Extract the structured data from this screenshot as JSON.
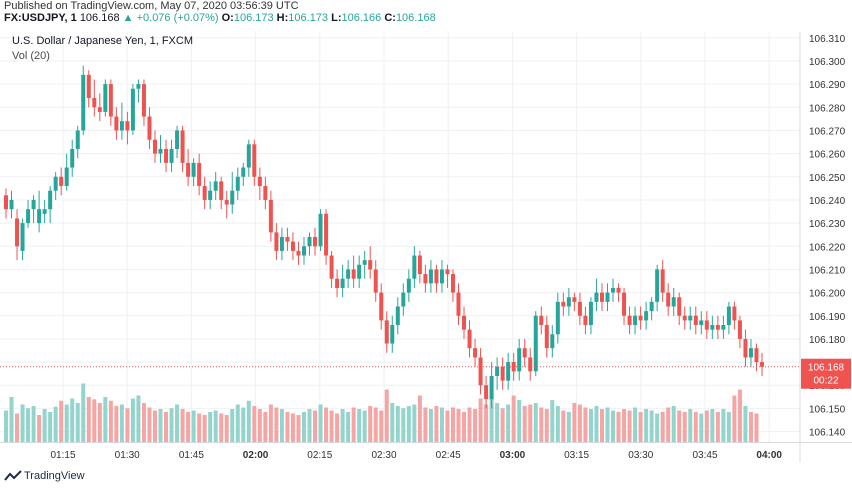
{
  "header": {
    "published": "Published on TradingView.com, May 07, 2020 03:56:39 UTC",
    "symbol": "FX:USDJPY, 1",
    "last": "106.168",
    "change_arrow": "▲",
    "change": "+0.076 (+0.07%)",
    "o_label": "O:",
    "o": "106.173",
    "h_label": "H:",
    "h": "106.173",
    "l_label": "L:",
    "l": "106.166",
    "c_label": "C:",
    "c": "106.168"
  },
  "legend": {
    "name": "U.S. Dollar / Japanese Yen, 1, FXCM",
    "vol": "Vol (20)"
  },
  "footer": {
    "brand": "TradingView",
    "brand_icon": "tradingview-logo-icon"
  },
  "colors": {
    "up": "#26a69a",
    "down": "#ef5350",
    "up_vol": "#93d4cc",
    "down_vol": "#f5a5a4",
    "grid": "#eef0f3",
    "axis_text": "#333333",
    "price_tag": "#ef5350"
  },
  "chart_data": {
    "type": "candlestick",
    "title": "U.S. Dollar / Japanese Yen, 1, FXCM",
    "x_ticks": [
      "01:15",
      "01:30",
      "01:45",
      "02:00",
      "02:15",
      "02:30",
      "02:45",
      "03:00",
      "03:15",
      "03:30",
      "03:45",
      "04:00"
    ],
    "x_ticks_bold": [
      "02:00",
      "03:00",
      "04:00"
    ],
    "y_ticks": [
      "106.310",
      "106.300",
      "106.290",
      "106.280",
      "106.270",
      "106.260",
      "106.250",
      "106.240",
      "106.230",
      "106.220",
      "106.210",
      "106.200",
      "106.190",
      "106.180",
      "106.170",
      "106.160",
      "106.150",
      "106.140"
    ],
    "ylim": [
      106.1355,
      106.3125
    ],
    "grid": true,
    "last_price_label": "106.168",
    "countdown_label": "00:22",
    "candles": [
      [
        106.242,
        106.236,
        106.245,
        106.232
      ],
      [
        106.236,
        106.24,
        106.244,
        106.232
      ],
      [
        106.232,
        106.22,
        106.236,
        106.214
      ],
      [
        106.218,
        106.23,
        106.232,
        106.214
      ],
      [
        106.23,
        106.236,
        106.24,
        106.228
      ],
      [
        106.236,
        106.24,
        106.242,
        106.23
      ],
      [
        106.23,
        106.236,
        106.244,
        106.226
      ],
      [
        106.234,
        106.236,
        106.24,
        106.23
      ],
      [
        106.236,
        106.244,
        106.246,
        106.23
      ],
      [
        106.244,
        106.25,
        106.252,
        106.24
      ],
      [
        106.25,
        106.246,
        106.254,
        106.242
      ],
      [
        106.246,
        106.254,
        106.26,
        106.244
      ],
      [
        106.254,
        106.262,
        106.266,
        106.25
      ],
      [
        106.262,
        106.27,
        106.272,
        106.258
      ],
      [
        106.27,
        106.294,
        106.298,
        106.268
      ],
      [
        106.294,
        106.284,
        106.296,
        106.28
      ],
      [
        106.284,
        106.28,
        106.292,
        106.276
      ],
      [
        106.28,
        106.278,
        106.286,
        106.274
      ],
      [
        106.278,
        106.29,
        106.292,
        106.276
      ],
      [
        106.29,
        106.276,
        106.292,
        106.272
      ],
      [
        106.276,
        106.27,
        106.28,
        106.266
      ],
      [
        106.27,
        106.274,
        106.282,
        106.266
      ],
      [
        106.274,
        106.27,
        106.278,
        106.264
      ],
      [
        106.27,
        106.288,
        106.29,
        106.268
      ],
      [
        106.288,
        106.29,
        106.292,
        106.282
      ],
      [
        106.29,
        106.276,
        106.292,
        106.272
      ],
      [
        106.276,
        106.266,
        106.28,
        106.262
      ],
      [
        106.266,
        106.26,
        106.27,
        106.256
      ],
      [
        106.26,
        106.262,
        106.268,
        106.256
      ],
      [
        106.262,
        106.256,
        106.266,
        106.252
      ],
      [
        106.256,
        106.262,
        106.266,
        106.252
      ],
      [
        106.262,
        106.27,
        106.272,
        106.258
      ],
      [
        106.27,
        106.256,
        106.272,
        106.252
      ],
      [
        106.256,
        106.25,
        106.262,
        106.246
      ],
      [
        106.25,
        106.256,
        106.258,
        106.246
      ],
      [
        106.256,
        106.246,
        106.26,
        106.242
      ],
      [
        106.246,
        106.24,
        106.25,
        106.236
      ],
      [
        106.24,
        106.244,
        106.248,
        106.236
      ],
      [
        106.244,
        106.248,
        106.252,
        106.24
      ],
      [
        106.248,
        106.24,
        106.25,
        106.236
      ],
      [
        106.24,
        106.238,
        106.244,
        106.232
      ],
      [
        106.238,
        106.244,
        106.252,
        106.234
      ],
      [
        106.244,
        106.25,
        106.254,
        106.24
      ],
      [
        106.25,
        106.254,
        106.256,
        106.246
      ],
      [
        106.254,
        106.264,
        106.266,
        106.25
      ],
      [
        106.264,
        106.25,
        106.266,
        106.246
      ],
      [
        106.25,
        106.246,
        106.254,
        106.24
      ],
      [
        106.246,
        106.24,
        106.25,
        106.236
      ],
      [
        106.24,
        106.226,
        106.244,
        106.222
      ],
      [
        106.226,
        106.218,
        106.23,
        106.214
      ],
      [
        106.218,
        106.224,
        106.228,
        106.214
      ],
      [
        106.224,
        106.222,
        106.228,
        106.218
      ],
      [
        106.222,
        106.218,
        106.226,
        106.214
      ],
      [
        106.218,
        106.216,
        106.222,
        106.212
      ],
      [
        106.216,
        106.22,
        106.224,
        106.212
      ],
      [
        106.22,
        106.224,
        106.226,
        106.216
      ],
      [
        106.224,
        106.22,
        106.228,
        106.216
      ],
      [
        106.22,
        106.234,
        106.236,
        106.218
      ],
      [
        106.234,
        106.216,
        106.236,
        106.212
      ],
      [
        106.216,
        106.206,
        106.218,
        106.202
      ],
      [
        106.206,
        106.202,
        106.21,
        106.198
      ],
      [
        106.202,
        106.206,
        106.212,
        106.198
      ],
      [
        106.206,
        106.21,
        106.214,
        106.202
      ],
      [
        106.21,
        106.206,
        106.216,
        106.202
      ],
      [
        106.206,
        106.212,
        106.216,
        106.202
      ],
      [
        106.212,
        106.214,
        106.218,
        106.206
      ],
      [
        106.214,
        106.21,
        106.22,
        106.206
      ],
      [
        106.21,
        106.2,
        106.214,
        106.196
      ],
      [
        106.2,
        106.188,
        106.204,
        106.184
      ],
      [
        106.188,
        106.178,
        106.192,
        106.174
      ],
      [
        106.178,
        106.186,
        106.19,
        106.174
      ],
      [
        106.186,
        106.194,
        106.198,
        106.182
      ],
      [
        106.194,
        106.2,
        106.204,
        106.19
      ],
      [
        106.2,
        106.206,
        106.21,
        106.196
      ],
      [
        106.206,
        106.216,
        106.22,
        106.202
      ],
      [
        106.216,
        106.208,
        106.218,
        106.204
      ],
      [
        106.208,
        106.204,
        106.212,
        106.2
      ],
      [
        106.204,
        106.21,
        106.214,
        106.2
      ],
      [
        106.21,
        106.204,
        106.212,
        106.2
      ],
      [
        106.204,
        106.21,
        106.214,
        106.2
      ],
      [
        106.21,
        106.208,
        106.212,
        106.202
      ],
      [
        106.208,
        106.2,
        106.21,
        106.196
      ],
      [
        106.2,
        106.19,
        106.204,
        106.186
      ],
      [
        106.19,
        106.184,
        106.194,
        106.18
      ],
      [
        106.184,
        106.176,
        106.188,
        106.172
      ],
      [
        106.176,
        106.172,
        106.18,
        106.168
      ],
      [
        106.172,
        106.16,
        106.176,
        106.156
      ],
      [
        106.16,
        106.154,
        106.164,
        106.15
      ],
      [
        106.154,
        106.164,
        106.17,
        106.15
      ],
      [
        106.164,
        106.168,
        106.172,
        106.158
      ],
      [
        106.168,
        106.162,
        106.172,
        106.158
      ],
      [
        106.162,
        106.17,
        106.174,
        106.158
      ],
      [
        106.17,
        106.166,
        106.174,
        106.162
      ],
      [
        106.166,
        106.176,
        106.18,
        106.162
      ],
      [
        106.176,
        106.172,
        106.18,
        106.168
      ],
      [
        106.172,
        106.166,
        106.176,
        106.162
      ],
      [
        106.166,
        106.19,
        106.192,
        106.164
      ],
      [
        106.19,
        106.186,
        106.194,
        106.182
      ],
      [
        106.186,
        106.176,
        106.19,
        106.172
      ],
      [
        106.176,
        106.182,
        106.186,
        106.172
      ],
      [
        106.182,
        106.196,
        106.2,
        106.178
      ],
      [
        106.196,
        106.194,
        106.2,
        106.19
      ],
      [
        106.194,
        106.198,
        106.202,
        106.19
      ],
      [
        106.198,
        106.196,
        106.2,
        106.192
      ],
      [
        106.196,
        106.19,
        106.2,
        106.186
      ],
      [
        106.19,
        106.186,
        106.194,
        106.182
      ],
      [
        106.186,
        106.196,
        106.198,
        106.182
      ],
      [
        106.196,
        106.2,
        106.206,
        106.192
      ],
      [
        106.2,
        106.196,
        106.204,
        106.192
      ],
      [
        106.196,
        106.2,
        106.204,
        106.192
      ],
      [
        106.2,
        106.202,
        106.206,
        106.196
      ],
      [
        106.202,
        106.2,
        106.204,
        106.196
      ],
      [
        106.2,
        106.19,
        106.202,
        106.186
      ],
      [
        106.19,
        106.186,
        106.194,
        106.182
      ],
      [
        106.186,
        106.19,
        106.194,
        106.182
      ],
      [
        106.19,
        106.188,
        106.194,
        106.184
      ],
      [
        106.188,
        106.192,
        106.196,
        106.184
      ],
      [
        106.192,
        106.196,
        106.198,
        106.188
      ],
      [
        106.196,
        106.21,
        106.212,
        106.192
      ],
      [
        106.21,
        106.2,
        106.214,
        106.196
      ],
      [
        106.2,
        106.194,
        106.204,
        106.19
      ],
      [
        106.194,
        106.198,
        106.202,
        106.19
      ],
      [
        106.198,
        106.19,
        106.2,
        106.186
      ],
      [
        106.19,
        106.188,
        106.194,
        106.184
      ],
      [
        106.188,
        106.19,
        106.194,
        106.184
      ],
      [
        106.19,
        106.186,
        106.194,
        106.182
      ],
      [
        106.186,
        106.188,
        106.192,
        106.182
      ],
      [
        106.188,
        106.184,
        106.192,
        106.18
      ],
      [
        106.184,
        106.186,
        106.19,
        106.18
      ],
      [
        106.186,
        106.184,
        106.19,
        106.18
      ],
      [
        106.184,
        106.186,
        106.19,
        106.18
      ],
      [
        106.186,
        106.194,
        106.196,
        106.182
      ],
      [
        106.194,
        106.188,
        106.196,
        106.184
      ],
      [
        106.188,
        106.18,
        106.19,
        106.176
      ],
      [
        106.18,
        106.172,
        106.184,
        106.168
      ],
      [
        106.172,
        106.176,
        106.18,
        106.168
      ],
      [
        106.176,
        106.17,
        106.178,
        106.166
      ],
      [
        106.17,
        106.168,
        106.174,
        106.164
      ]
    ],
    "volume_max": 100,
    "volume": [
      42,
      60,
      38,
      50,
      45,
      48,
      36,
      44,
      40,
      47,
      55,
      50,
      58,
      52,
      78,
      60,
      57,
      52,
      60,
      55,
      48,
      50,
      45,
      58,
      62,
      52,
      46,
      42,
      44,
      40,
      45,
      50,
      44,
      40,
      42,
      38,
      36,
      40,
      42,
      38,
      36,
      44,
      50,
      46,
      55,
      48,
      44,
      40,
      50,
      46,
      44,
      40,
      38,
      36,
      40,
      44,
      42,
      50,
      46,
      42,
      38,
      44,
      40,
      46,
      44,
      42,
      48,
      46,
      42,
      70,
      52,
      48,
      45,
      48,
      50,
      62,
      46,
      44,
      48,
      46,
      42,
      46,
      44,
      40,
      46,
      44,
      58,
      50,
      70,
      52,
      45,
      50,
      62,
      56,
      48,
      50,
      52,
      46,
      44,
      56,
      48,
      42,
      40,
      52,
      50,
      46,
      44,
      48,
      44,
      46,
      42,
      40,
      44,
      42,
      46,
      40,
      44,
      42,
      38,
      40,
      46,
      48,
      42,
      40,
      44,
      40,
      38,
      42,
      44,
      40,
      44,
      40,
      62,
      70,
      48,
      40,
      38
    ],
    "volume_up": [
      true,
      true,
      false,
      true,
      true,
      true,
      false,
      true,
      true,
      true,
      false,
      true,
      true,
      true,
      true,
      false,
      false,
      false,
      true,
      false,
      false,
      true,
      false,
      true,
      true,
      false,
      false,
      false,
      true,
      false,
      true,
      true,
      false,
      false,
      true,
      false,
      false,
      true,
      true,
      false,
      false,
      true,
      true,
      true,
      true,
      false,
      false,
      false,
      false,
      false,
      true,
      false,
      false,
      false,
      true,
      true,
      false,
      true,
      false,
      false,
      false,
      true,
      true,
      false,
      true,
      true,
      false,
      false,
      false,
      false,
      true,
      true,
      true,
      true,
      true,
      false,
      false,
      true,
      false,
      true,
      false,
      false,
      false,
      false,
      false,
      false,
      false,
      false,
      true,
      true,
      false,
      true,
      false,
      true,
      false,
      false,
      true,
      false,
      false,
      true,
      true,
      false,
      true,
      false,
      false,
      false,
      true,
      true,
      false,
      true,
      true,
      false,
      false,
      false,
      true,
      false,
      true,
      true,
      true,
      false,
      false,
      true,
      false,
      false,
      true,
      false,
      true,
      false,
      true,
      false,
      true,
      true,
      false,
      false,
      true,
      false,
      false
    ]
  }
}
